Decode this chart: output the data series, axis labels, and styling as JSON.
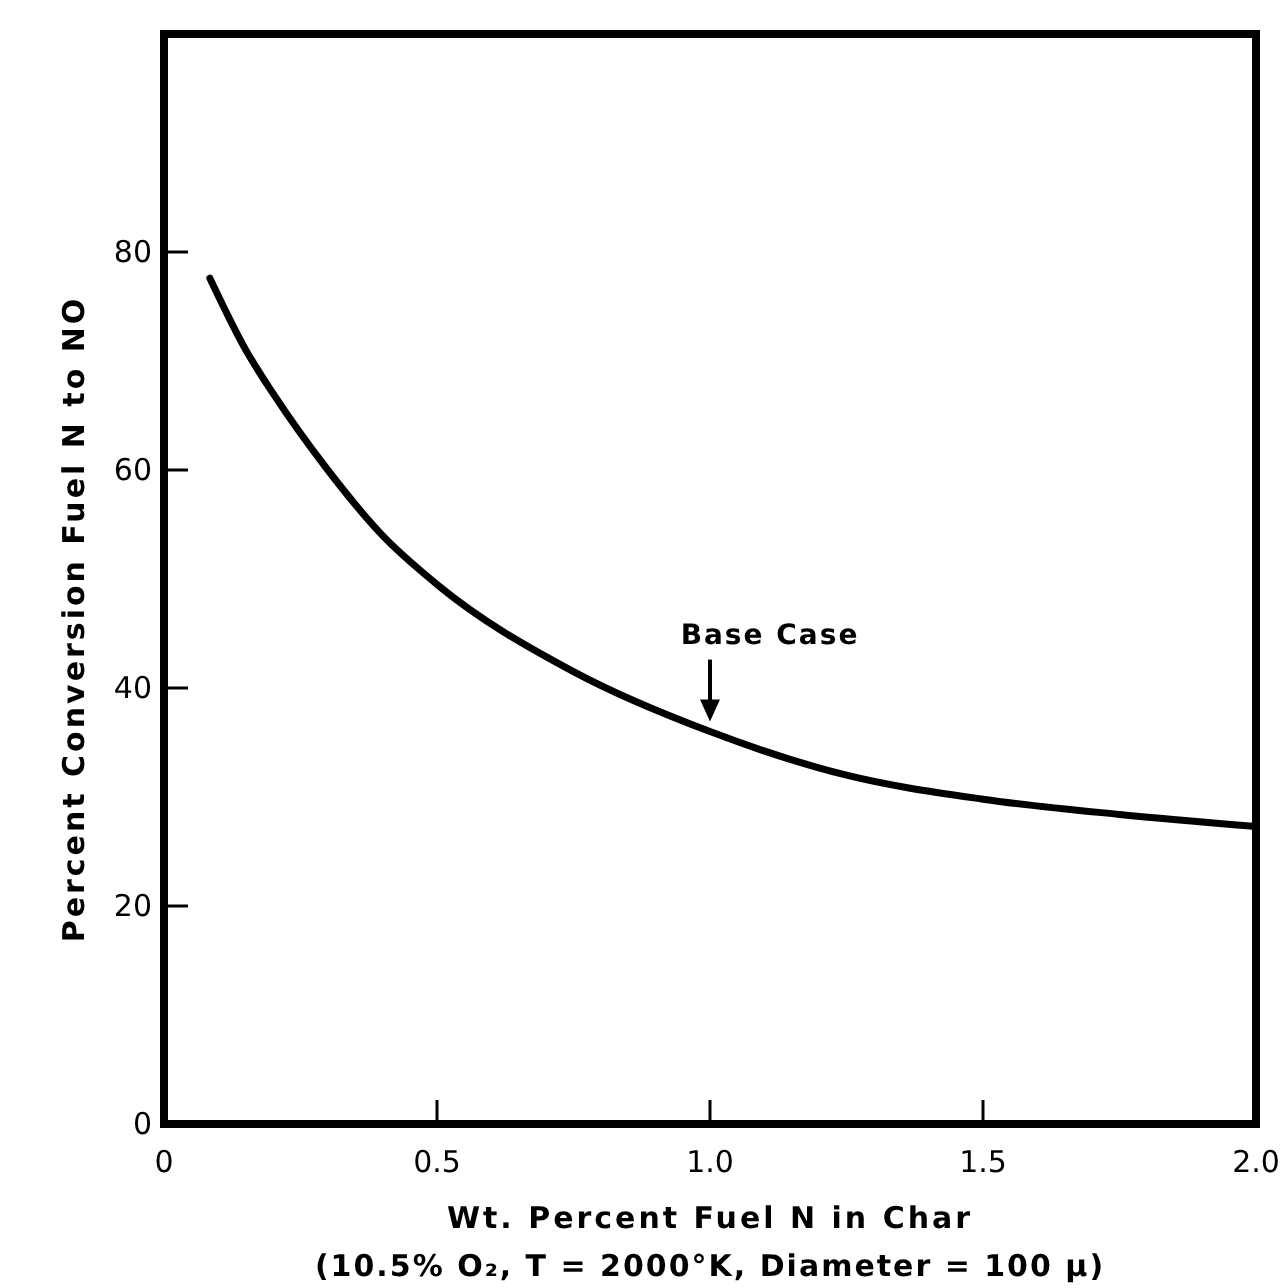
{
  "chart_data": {
    "type": "line",
    "xlabel": "Wt. Percent Fuel N in Char",
    "ylabel": "Percent Conversion Fuel N to NO",
    "x": [
      0.084,
      0.15,
      0.2,
      0.3,
      0.4,
      0.5,
      0.75,
      1.0,
      1.25,
      1.5,
      1.75,
      2.0
    ],
    "series": [
      {
        "color": "#000000",
        "values": [
          77.6,
          71,
          67,
          60,
          54,
          49.5,
          41.5,
          36,
          32,
          29.8,
          28.4,
          27.3
        ]
      }
    ],
    "xlim": [
      0,
      2
    ],
    "ylim": [
      0,
      100
    ],
    "xticks": [
      0,
      0.5,
      {
        "value": 1,
        "label": "1.0"
      },
      1.5,
      {
        "value": 2,
        "label": "2.0"
      }
    ],
    "yticks": [
      0,
      20,
      40,
      60,
      80
    ],
    "annotations": [
      {
        "text": "Base Case",
        "x": 1.0,
        "y": 36
      },
      "(10.5% O₂, T = 2000°K, Diameter = 100 μ)"
    ],
    "grid": false,
    "marker": "none",
    "line_style": "solid"
  }
}
